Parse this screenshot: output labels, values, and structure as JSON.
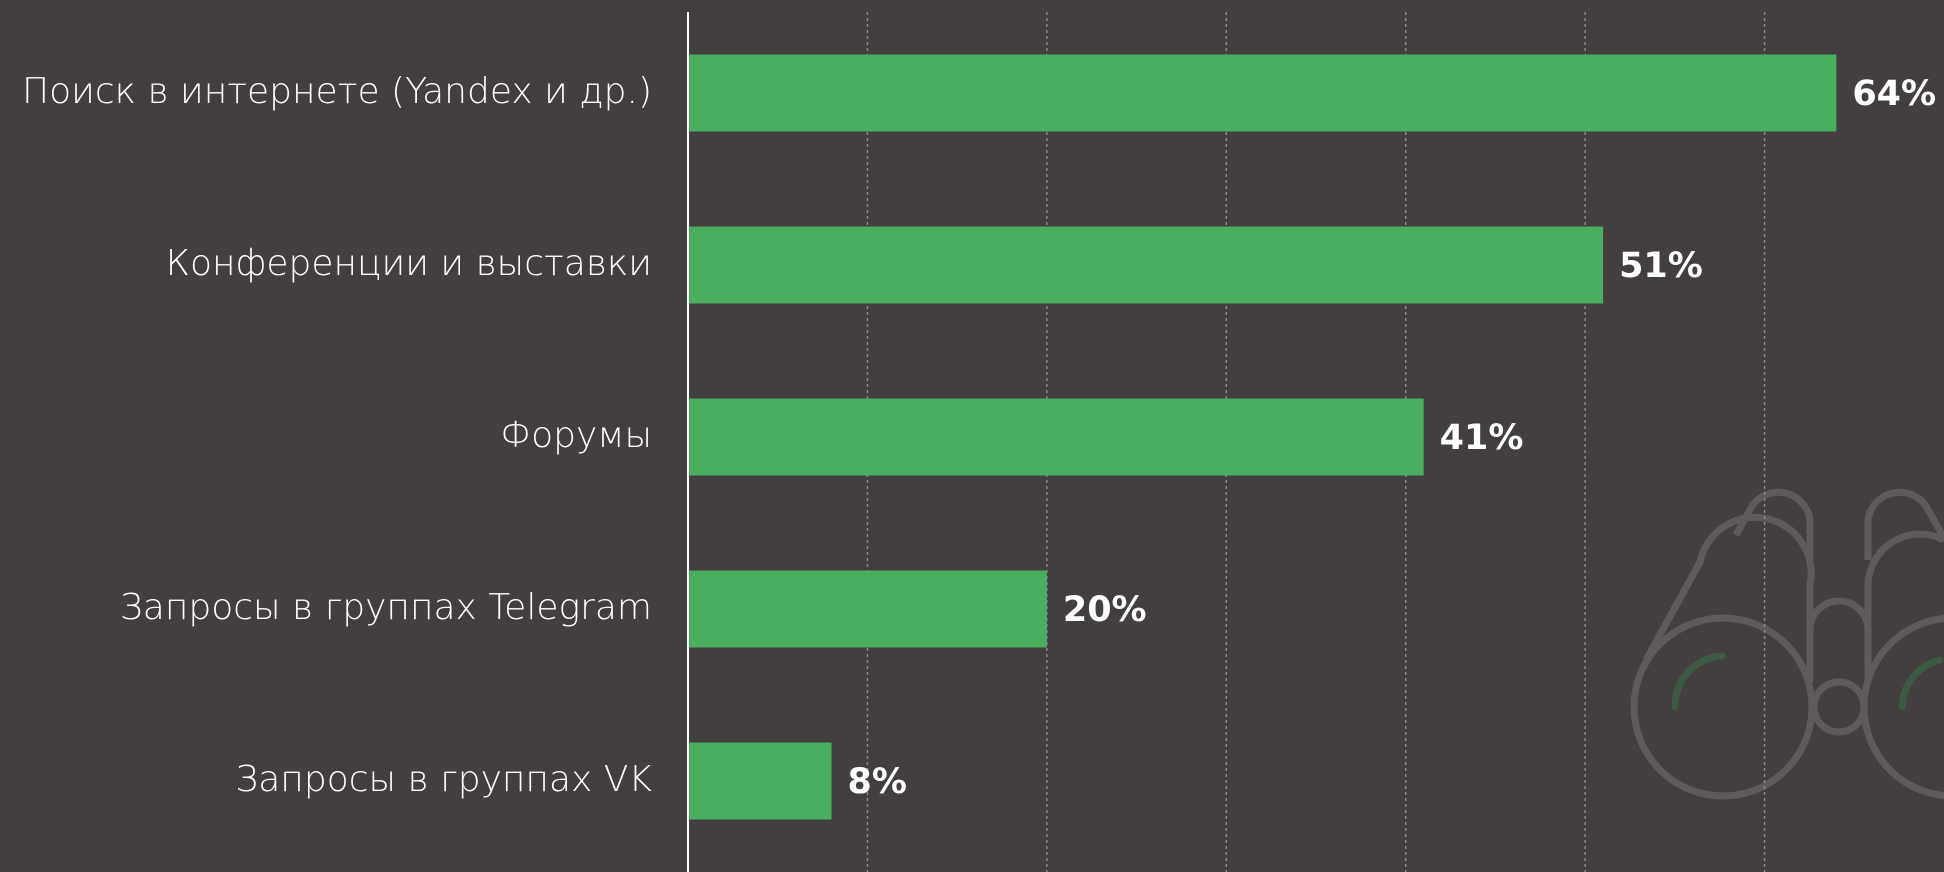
{
  "chart_data": {
    "type": "bar",
    "orientation": "horizontal",
    "categories": [
      "Поиск в интернете (Yandex и др.)",
      "Конференции и выставки",
      "Форумы",
      "Запросы в группах Telegram",
      "Запросы в группах VK"
    ],
    "values": [
      64,
      51,
      41,
      20,
      8
    ],
    "value_labels": [
      "64%",
      "51%",
      "41%",
      "20%",
      "8%"
    ],
    "color": "#4aae5f",
    "xlim": [
      0,
      70
    ],
    "xticks": [
      0,
      10,
      20,
      30,
      40,
      50,
      60
    ],
    "grid": true
  }
}
